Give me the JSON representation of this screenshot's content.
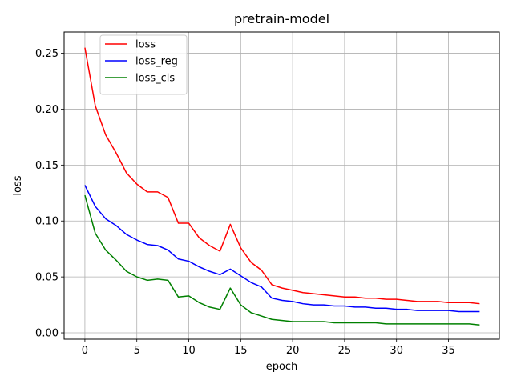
{
  "chart_data": {
    "type": "line",
    "title": "pretrain-model",
    "xlabel": "epoch",
    "ylabel": "loss",
    "xlim": [
      -2.0,
      39.9
    ],
    "ylim": [
      -0.0057,
      0.269
    ],
    "xticks": [
      0,
      5,
      10,
      15,
      20,
      25,
      30,
      35
    ],
    "yticks": [
      0.0,
      0.05,
      0.1,
      0.15,
      0.2,
      0.25
    ],
    "ytick_labels": [
      "0.00",
      "0.05",
      "0.10",
      "0.15",
      "0.20",
      "0.25"
    ],
    "grid": true,
    "legend_position": "top-left",
    "x": [
      0,
      1,
      2,
      3,
      4,
      5,
      6,
      7,
      8,
      9,
      10,
      11,
      12,
      13,
      14,
      15,
      16,
      17,
      18,
      19,
      20,
      21,
      22,
      23,
      24,
      25,
      26,
      27,
      28,
      29,
      30,
      31,
      32,
      33,
      34,
      35,
      36,
      37,
      38
    ],
    "series": [
      {
        "name": "loss",
        "color": "#ff0000",
        "values": [
          0.255,
          0.203,
          0.177,
          0.161,
          0.143,
          0.133,
          0.126,
          0.126,
          0.121,
          0.098,
          0.098,
          0.085,
          0.078,
          0.073,
          0.097,
          0.076,
          0.063,
          0.056,
          0.043,
          0.04,
          0.038,
          0.036,
          0.035,
          0.034,
          0.033,
          0.032,
          0.032,
          0.031,
          0.031,
          0.03,
          0.03,
          0.029,
          0.028,
          0.028,
          0.028,
          0.027,
          0.027,
          0.027,
          0.026
        ]
      },
      {
        "name": "loss_reg",
        "color": "#0000ff",
        "values": [
          0.132,
          0.113,
          0.102,
          0.096,
          0.088,
          0.083,
          0.079,
          0.078,
          0.074,
          0.066,
          0.064,
          0.059,
          0.055,
          0.052,
          0.057,
          0.051,
          0.045,
          0.041,
          0.031,
          0.029,
          0.028,
          0.026,
          0.025,
          0.025,
          0.024,
          0.024,
          0.023,
          0.023,
          0.022,
          0.022,
          0.021,
          0.021,
          0.02,
          0.02,
          0.02,
          0.02,
          0.019,
          0.019,
          0.019
        ]
      },
      {
        "name": "loss_cls",
        "color": "#008000",
        "values": [
          0.123,
          0.089,
          0.074,
          0.065,
          0.055,
          0.05,
          0.047,
          0.048,
          0.047,
          0.032,
          0.033,
          0.027,
          0.023,
          0.021,
          0.04,
          0.025,
          0.018,
          0.015,
          0.012,
          0.011,
          0.01,
          0.01,
          0.01,
          0.01,
          0.009,
          0.009,
          0.009,
          0.009,
          0.009,
          0.008,
          0.008,
          0.008,
          0.008,
          0.008,
          0.008,
          0.008,
          0.008,
          0.008,
          0.007
        ]
      }
    ]
  }
}
